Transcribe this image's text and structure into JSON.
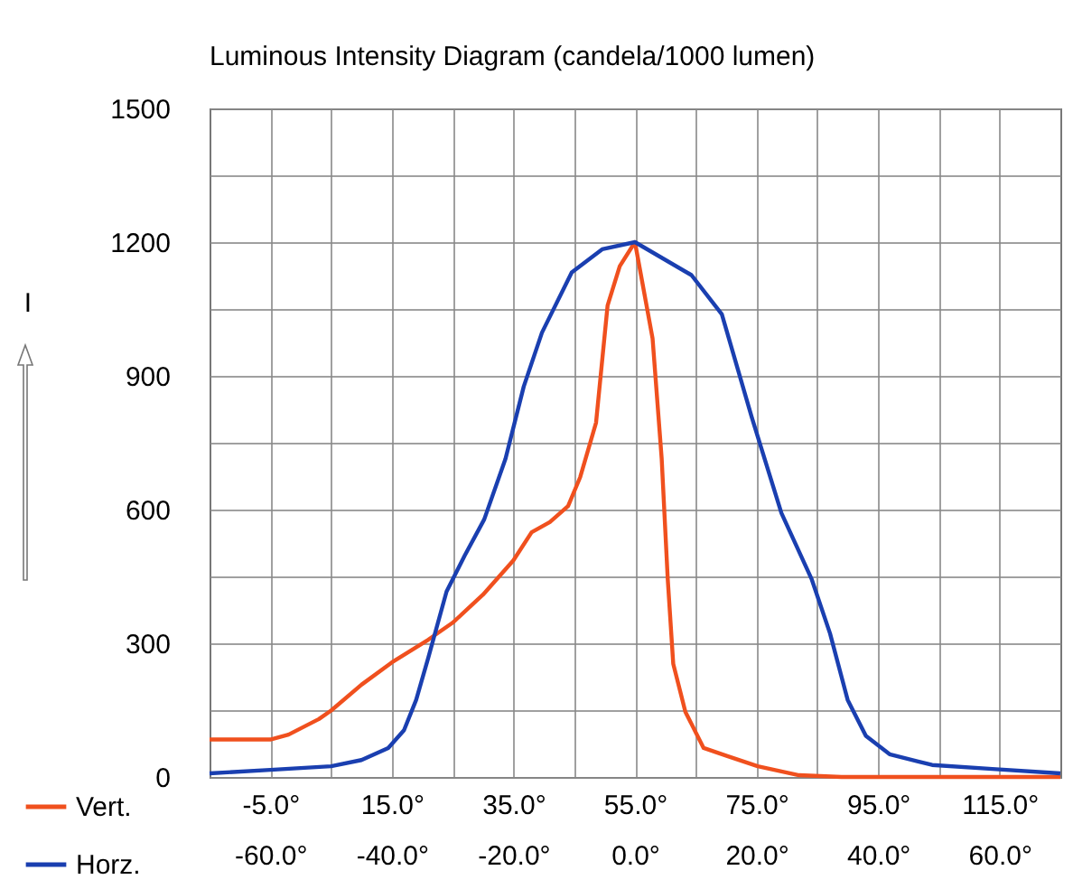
{
  "chart_data": {
    "type": "line",
    "title": "Luminous Intensity Diagram   (candela/1000 lumen)",
    "ylabel": "I",
    "xlim": [
      -15,
      125
    ],
    "xticks": [
      {
        "value": -5,
        "label": "-5.0°"
      },
      {
        "value": 5,
        "label": null
      },
      {
        "value": 15,
        "label": "15.0°"
      },
      {
        "value": 25,
        "label": null
      },
      {
        "value": 35,
        "label": "35.0°"
      },
      {
        "value": 45,
        "label": null
      },
      {
        "value": 55,
        "label": "55.0°"
      },
      {
        "value": 65,
        "label": null
      },
      {
        "value": 75,
        "label": "75.0°"
      },
      {
        "value": 85,
        "label": null
      },
      {
        "value": 95,
        "label": "95.0°"
      },
      {
        "value": 105,
        "label": null
      },
      {
        "value": 115,
        "label": "115.0°"
      }
    ],
    "x2lim": [
      -70,
      70
    ],
    "x2ticks": [
      {
        "value": -60,
        "label": "-60.0°"
      },
      {
        "value": -40,
        "label": "-40.0°"
      },
      {
        "value": -20,
        "label": "-20.0°"
      },
      {
        "value": 0,
        "label": "0.0°"
      },
      {
        "value": 20,
        "label": "20.0°"
      },
      {
        "value": 40,
        "label": "40.0°"
      },
      {
        "value": 60,
        "label": "60.0°"
      }
    ],
    "ylim": [
      0,
      1500
    ],
    "yticks": [
      0,
      {
        "value": 150,
        "label": null
      },
      300,
      {
        "value": 450,
        "label": null
      },
      600,
      {
        "value": 750,
        "label": null
      },
      900,
      {
        "value": 1050,
        "label": null
      },
      1200,
      {
        "value": 1350,
        "label": null
      },
      1500
    ],
    "grid": true,
    "legend": "bottom left",
    "series": [
      {
        "name": "Vert.",
        "color": "#f0501e",
        "x": [
          -15,
          -5,
          -2,
          3,
          5,
          10,
          15,
          21,
          25,
          30,
          35,
          38,
          41,
          44,
          46,
          48.6,
          50.5,
          52.5,
          55,
          57.9,
          59.4,
          60.4,
          61.3,
          63.3,
          66.3,
          70.2,
          75.2,
          82,
          89,
          125
        ],
        "values": [
          84,
          84,
          95,
          130,
          149,
          207,
          257,
          308,
          346,
          409,
          486,
          549,
          572,
          608,
          673,
          795,
          1058,
          1146,
          1200,
          984,
          714,
          443,
          254,
          146,
          65,
          47,
          24,
          4,
          0,
          0
        ]
      },
      {
        "name": "Horz.",
        "color": "#1a3fb0",
        "axis": "x2",
        "x": [
          -70,
          -60,
          -50,
          -45,
          -40.6,
          -38,
          -36,
          -34,
          -31,
          -28,
          -24.8,
          -21.3,
          -18.3,
          -15.3,
          -10.4,
          -5.4,
          0,
          9.3,
          14.3,
          19.2,
          24.1,
          29.1,
          32.1,
          35,
          38,
          41.9,
          48.9,
          58.8,
          70
        ],
        "values": [
          8,
          16,
          24,
          38,
          65,
          105,
          173,
          268,
          416,
          497,
          578,
          714,
          876,
          997,
          1132,
          1184,
          1200,
          1126,
          1038,
          808,
          592,
          443,
          322,
          173,
          92,
          51,
          27,
          18,
          8
        ]
      }
    ]
  }
}
